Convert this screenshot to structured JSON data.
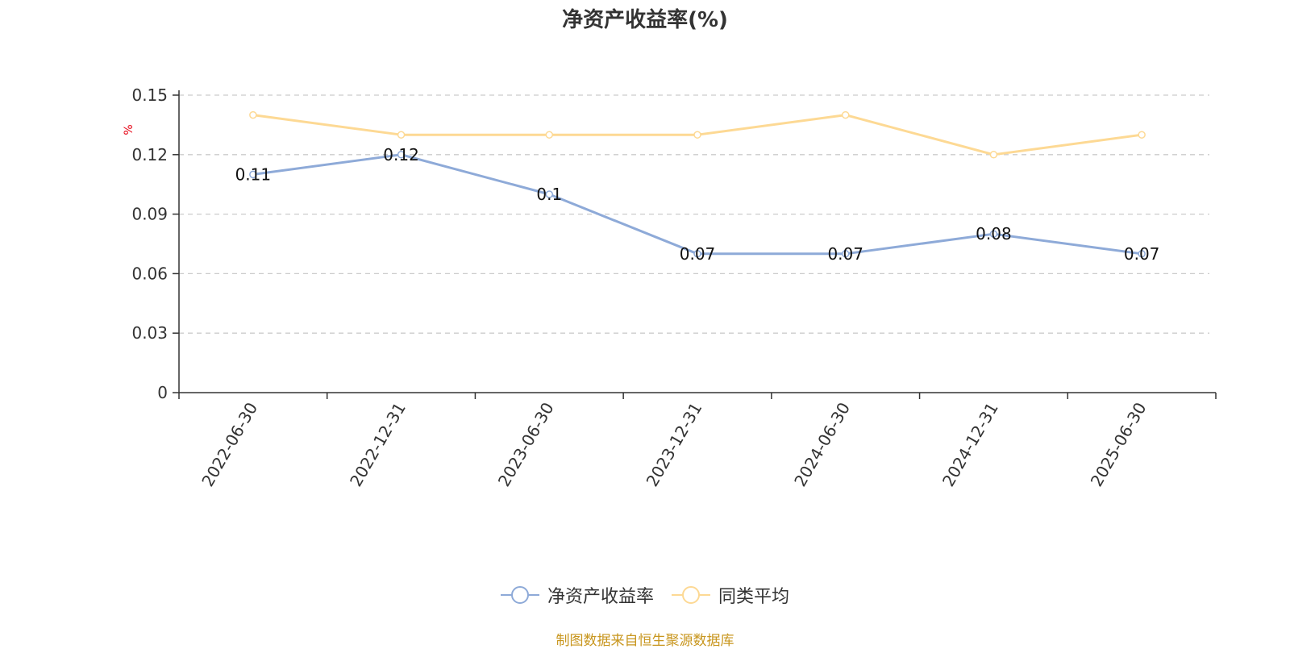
{
  "chart_data": {
    "type": "line",
    "title": "净资产收益率(%)",
    "ylabel": "%",
    "categories": [
      "2022-06-30",
      "2022-12-31",
      "2023-06-30",
      "2023-12-31",
      "2024-06-30",
      "2024-12-31",
      "2025-06-30"
    ],
    "series": [
      {
        "name": "净资产收益率",
        "values": [
          0.11,
          0.12,
          0.1,
          0.07,
          0.07,
          0.08,
          0.07
        ],
        "color": "#8eaad8",
        "show_labels": true
      },
      {
        "name": "同类平均",
        "values": [
          0.14,
          0.13,
          0.13,
          0.13,
          0.14,
          0.12,
          0.13
        ],
        "color": "#fdd994",
        "show_labels": false
      }
    ],
    "data_labels": [
      "0.11",
      "0.12",
      "0.1",
      "0.07",
      "0.07",
      "0.08",
      "0.07"
    ],
    "ylim": [
      0,
      0.15
    ],
    "yticks": [
      0,
      0.03,
      0.06,
      0.09,
      0.12,
      0.15
    ],
    "ytick_labels": [
      "0",
      "0.03",
      "0.06",
      "0.09",
      "0.12",
      "0.15"
    ],
    "grid": true,
    "legend_position": "bottom"
  },
  "source_note": "制图数据来自恒生聚源数据库"
}
